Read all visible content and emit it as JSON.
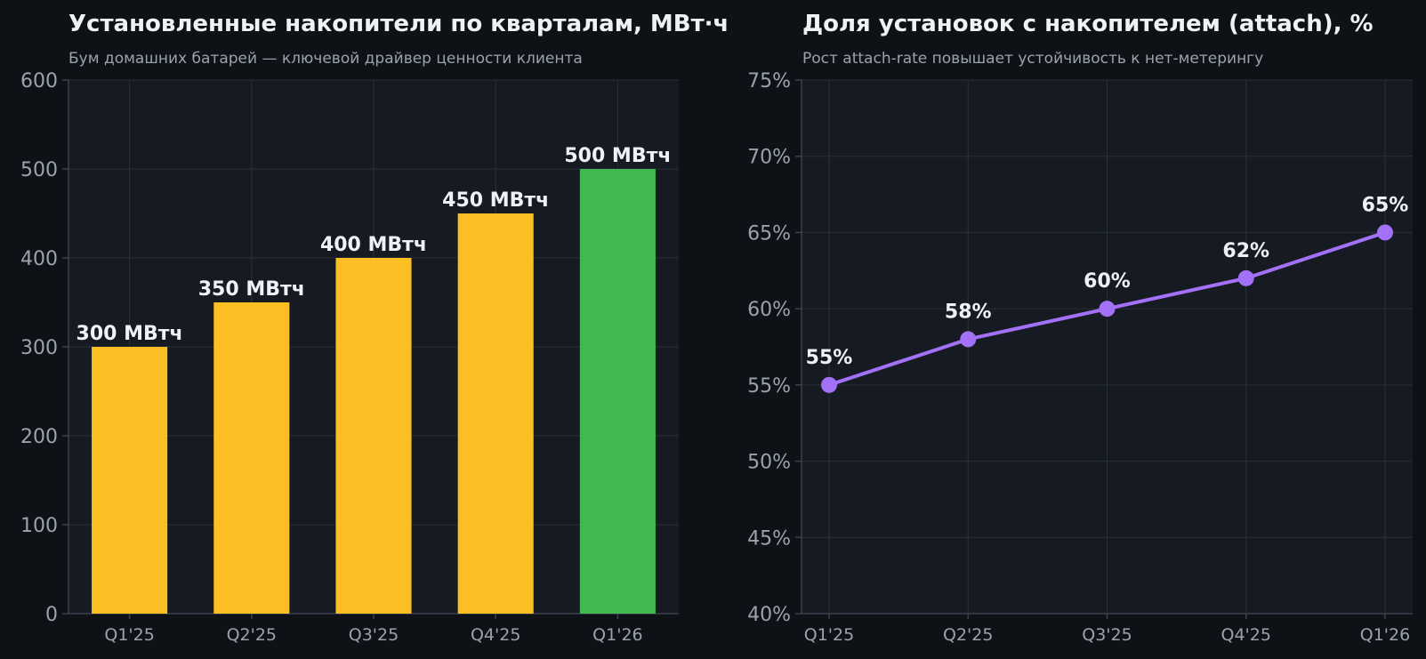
{
  "chart_data": [
    {
      "type": "bar",
      "title": "Установленные накопители по кварталам, МВт·ч",
      "subtitle": "Бум домашних батарей — ключевой драйвер ценности клиента",
      "categories": [
        "Q1'25",
        "Q2'25",
        "Q3'25",
        "Q4'25",
        "Q1'26"
      ],
      "values": [
        300,
        350,
        400,
        450,
        500
      ],
      "value_labels": [
        "300 МВтч",
        "350 МВтч",
        "400 МВтч",
        "450 МВтч",
        "500 МВтч"
      ],
      "colors": [
        "#fbbf24",
        "#fbbf24",
        "#fbbf24",
        "#fbbf24",
        "#3fb950"
      ],
      "ylim": [
        0,
        600
      ],
      "yticks": [
        0,
        100,
        200,
        300,
        400,
        500,
        600
      ],
      "ytick_labels": [
        "0",
        "100",
        "200",
        "300",
        "400",
        "500",
        "600"
      ],
      "xlabel": "",
      "ylabel": "",
      "grid": true
    },
    {
      "type": "line",
      "title": "Доля установок с накопителем (attach), %",
      "subtitle": "Рост attach-rate повышает устойчивость к нет-метерингу",
      "categories": [
        "Q1'25",
        "Q2'25",
        "Q3'25",
        "Q4'25",
        "Q1'26"
      ],
      "values": [
        55,
        58,
        60,
        62,
        65
      ],
      "value_labels": [
        "55%",
        "58%",
        "60%",
        "62%",
        "65%"
      ],
      "color": "#a371f7",
      "ylim": [
        40,
        75
      ],
      "yticks": [
        40,
        45,
        50,
        55,
        60,
        65,
        70,
        75
      ],
      "ytick_labels": [
        "40%",
        "45%",
        "50%",
        "55%",
        "60%",
        "65%",
        "70%",
        "75%"
      ],
      "xlabel": "",
      "ylabel": "",
      "grid": true
    }
  ],
  "colors": {
    "background": "#0e1217",
    "plot_background": "#161a22",
    "grid": "#2a303a",
    "text": "#eef1f5",
    "muted": "#9aa3ad"
  }
}
